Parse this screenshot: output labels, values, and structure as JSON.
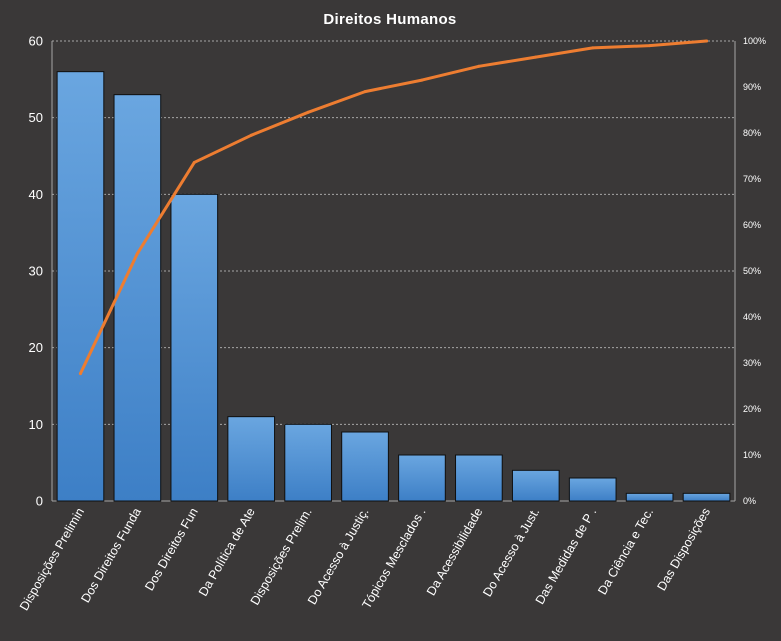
{
  "chart_data": {
    "type": "bar",
    "title": "Direitos  Humanos",
    "categories": [
      "Disposições Prelimin",
      "Dos Direitos Funda",
      "Dos Direitos Fun",
      "Da Política de Ate",
      "Disposições Prelim.",
      "Do Acesso à Justiç.",
      "Tópicos Mesclados .",
      "Da Acessibilidade",
      "Do Acesso à Just.",
      "Das Medidas de P .",
      "Da Ciência e Tec.",
      "Das Disposições"
    ],
    "series": [
      {
        "type": "bar",
        "axis": "left",
        "values": [
          56,
          53,
          40,
          11,
          10,
          9,
          6,
          6,
          4,
          3,
          1,
          1
        ]
      },
      {
        "type": "line",
        "axis": "right",
        "values": [
          27.7,
          53.8,
          73.6,
          79.5,
          84.5,
          89.0,
          91.5,
          94.5,
          96.5,
          98.5,
          99.0,
          100
        ]
      }
    ],
    "ylim": [
      0,
      60
    ],
    "yticks": [
      "0",
      "10",
      "20",
      "30",
      "40",
      "50",
      "60"
    ],
    "y2lim": [
      0,
      100
    ],
    "y2ticks": [
      "0%",
      "10%",
      "20%",
      "30%",
      "40%",
      "50%",
      "60%",
      "70%",
      "80%",
      "90%",
      "100%"
    ],
    "grid": true,
    "legend": "none",
    "colors": {
      "background": "#3a3838",
      "bar_top": "#6aa6e0",
      "bar_bottom": "#3d7fc6",
      "bar_edge": "#0f0f0f",
      "line": "#ed7d31",
      "grid": "#a6a6a6",
      "text": "#ffffff"
    }
  }
}
